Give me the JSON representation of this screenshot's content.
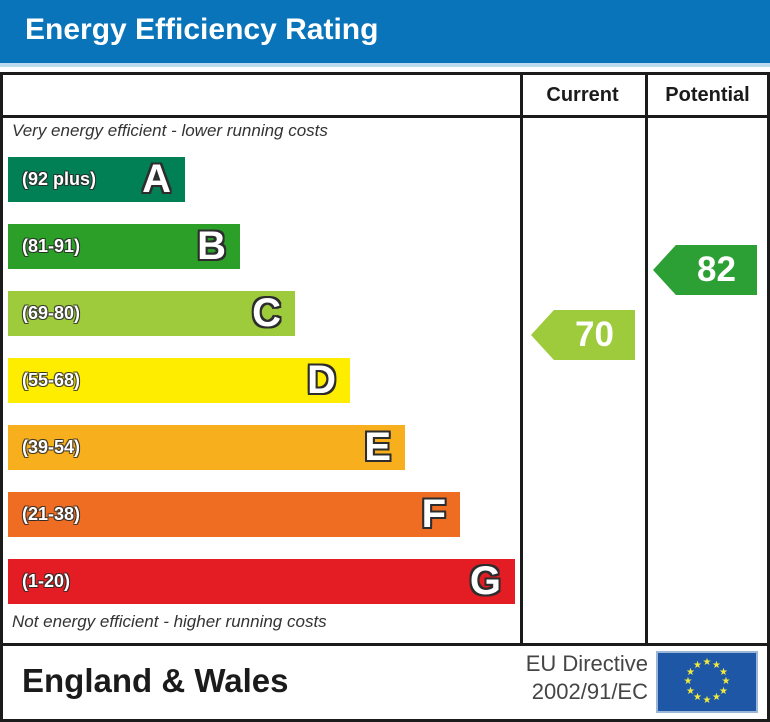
{
  "header": {
    "title": "Energy Efficiency Rating"
  },
  "chart_data": {
    "type": "bar",
    "title": "Energy Efficiency Rating",
    "columns": [
      "Current",
      "Potential"
    ],
    "annotations": {
      "top": "Very energy efficient - lower running costs",
      "bottom": "Not energy efficient - higher running costs"
    },
    "bands": [
      {
        "letter": "A",
        "range_label": "(92 plus)",
        "min": 92,
        "max": 100,
        "color": "#008054"
      },
      {
        "letter": "B",
        "range_label": "(81-91)",
        "min": 81,
        "max": 91,
        "color": "#2c9f29"
      },
      {
        "letter": "C",
        "range_label": "(69-80)",
        "min": 69,
        "max": 80,
        "color": "#9dcb3c"
      },
      {
        "letter": "D",
        "range_label": "(55-68)",
        "min": 55,
        "max": 68,
        "color": "#ffed00"
      },
      {
        "letter": "E",
        "range_label": "(39-54)",
        "min": 39,
        "max": 54,
        "color": "#f7af1d"
      },
      {
        "letter": "F",
        "range_label": "(21-38)",
        "min": 21,
        "max": 38,
        "color": "#ee6d23"
      },
      {
        "letter": "G",
        "range_label": "(1-20)",
        "min": 1,
        "max": 20,
        "color": "#e31d23"
      }
    ],
    "ratings": {
      "current": {
        "value": 70,
        "band": "C",
        "color": "#9dcb3c"
      },
      "potential": {
        "value": 82,
        "band": "B",
        "color": "#2ca035"
      }
    }
  },
  "footer": {
    "region": "England & Wales",
    "directive": [
      "EU Directive",
      "2002/91/EC"
    ],
    "eu_flag": {
      "background": "#1d57a6",
      "star_color": "#f0e93f",
      "star_count": 12
    }
  }
}
